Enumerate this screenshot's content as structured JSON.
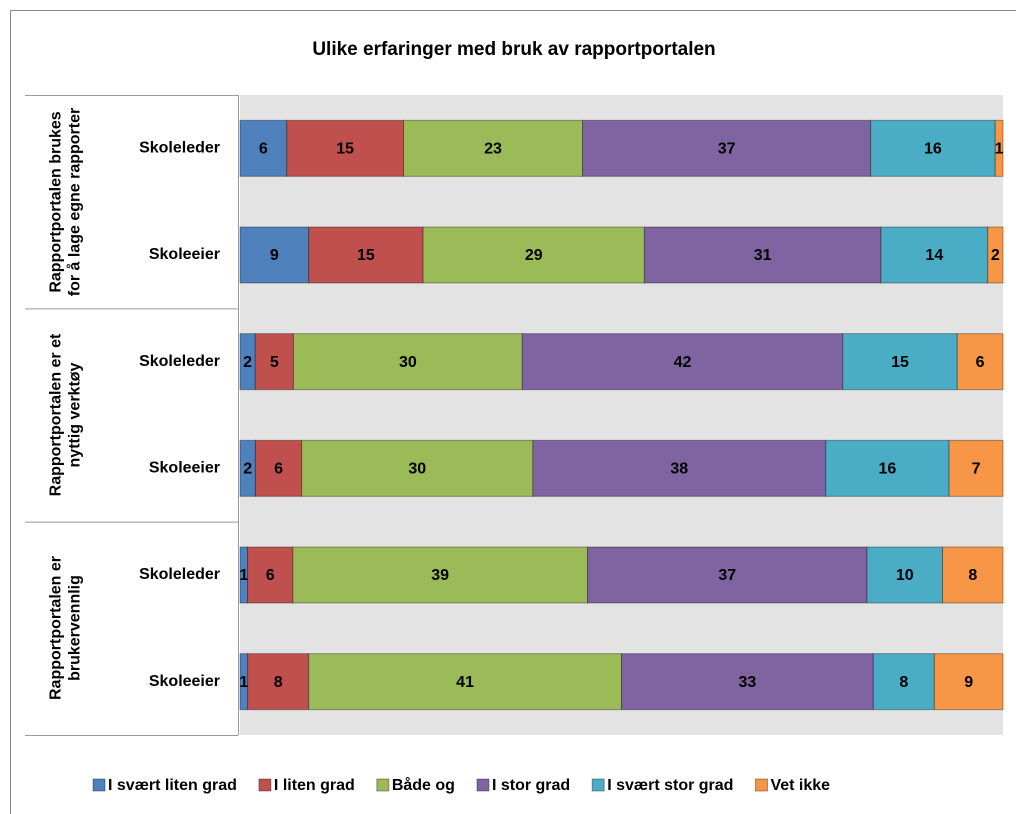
{
  "chart_data": {
    "type": "stacked-percent-bar-horizontal",
    "title": "Ulike erfaringer med bruk av rapportportalen",
    "groups": [
      {
        "name": "Rapportportalen brukes for å lage egne rapporter",
        "categories": [
          "Skoleleder",
          "Skoleeier"
        ]
      },
      {
        "name": "Rapportportalen er et nyttig verktøy",
        "categories": [
          "Skoleleder",
          "Skoleeier"
        ]
      },
      {
        "name": "Rapportportalen er brukervennlig",
        "categories": [
          "Skoleleder",
          "Skoleeier"
        ]
      }
    ],
    "series": [
      {
        "name": "I svært liten grad",
        "color": "#4f81bd",
        "values": [
          6,
          9,
          2,
          2,
          1,
          1
        ]
      },
      {
        "name": "I liten grad",
        "color": "#c0504d",
        "values": [
          15,
          15,
          5,
          6,
          6,
          8
        ]
      },
      {
        "name": "Både og",
        "color": "#9bbb59",
        "values": [
          23,
          29,
          30,
          30,
          39,
          41
        ]
      },
      {
        "name": "I stor grad",
        "color": "#8064a2",
        "values": [
          37,
          31,
          42,
          38,
          37,
          33
        ]
      },
      {
        "name": "I svært stor grad",
        "color": "#4bacc6",
        "values": [
          16,
          14,
          15,
          16,
          10,
          8
        ]
      },
      {
        "name": "Vet ikke",
        "color": "#f79646",
        "values": [
          1,
          2,
          6,
          7,
          8,
          9
        ]
      }
    ],
    "legend": "bottom"
  }
}
